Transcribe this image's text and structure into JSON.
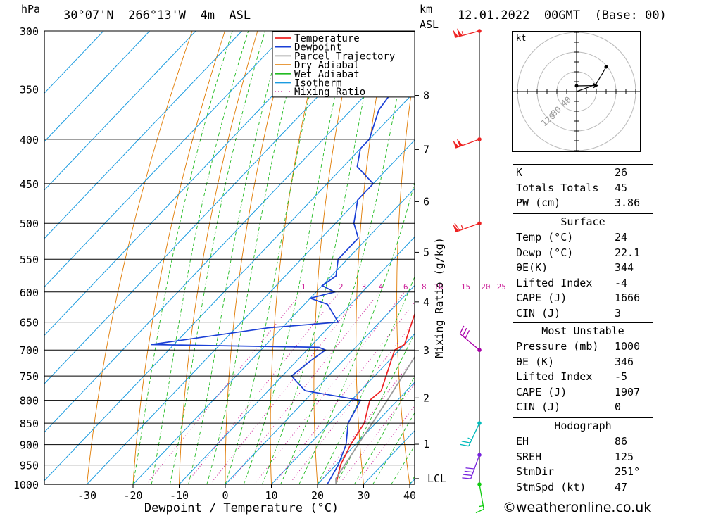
{
  "header": {
    "location": "30°07'N  266°13'W  4m  ASL",
    "datetime": "12.01.2022  00GMT  (Base: 00)",
    "p_unit": "hPa",
    "km_unit": "km",
    "km_unit2": "ASL"
  },
  "chart_data": {
    "type": "line",
    "subtype": "skew-t log-p",
    "xlabel": "Dewpoint / Temperature (°C)",
    "ylabel_left": "hPa",
    "ylabel_right": "Mixing Ratio (g/kg)",
    "x_ticks": [
      -30,
      -20,
      -10,
      0,
      10,
      20,
      30,
      40
    ],
    "y_ticks": [
      300,
      350,
      400,
      450,
      500,
      550,
      600,
      650,
      700,
      750,
      800,
      850,
      900,
      950,
      1000
    ],
    "xlim": [
      -40,
      40
    ],
    "ylim": [
      1000,
      300
    ],
    "km_ticks": [
      {
        "km": 1,
        "p": 899
      },
      {
        "km": 2,
        "p": 795
      },
      {
        "km": 3,
        "p": 701
      },
      {
        "km": 4,
        "p": 616
      },
      {
        "km": 5,
        "p": 540
      },
      {
        "km": 6,
        "p": 472
      },
      {
        "km": 7,
        "p": 411
      },
      {
        "km": 8,
        "p": 356
      }
    ],
    "lcl_label": "LCL",
    "lcl_p": 985,
    "mixing_ratio_labels": [
      "1",
      "2",
      "3",
      "4",
      "6",
      "8",
      "10",
      "15",
      "20",
      "25"
    ],
    "legend": [
      {
        "label": "Temperature",
        "color": "#ee2222",
        "style": "solid"
      },
      {
        "label": "Dewpoint",
        "color": "#1a3fd6",
        "style": "solid"
      },
      {
        "label": "Parcel Trajectory",
        "color": "#999999",
        "style": "solid"
      },
      {
        "label": "Dry Adiabat",
        "color": "#e07a00",
        "style": "solid"
      },
      {
        "label": "Wet Adiabat",
        "color": "#22bb22",
        "style": "solid"
      },
      {
        "label": "Isotherm",
        "color": "#1a9be0",
        "style": "solid"
      },
      {
        "label": "Mixing Ratio",
        "color": "#cc2299",
        "style": "dotted"
      }
    ],
    "series": [
      {
        "name": "Temperature",
        "points": [
          [
            1000,
            24
          ],
          [
            950,
            21
          ],
          [
            900,
            19
          ],
          [
            850,
            17.5
          ],
          [
            800,
            14
          ],
          [
            780,
            14.5
          ],
          [
            700,
            9
          ],
          [
            690,
            10
          ],
          [
            650,
            7
          ],
          [
            600,
            3
          ],
          [
            580,
            2
          ],
          [
            550,
            -1
          ],
          [
            500,
            -5
          ],
          [
            450,
            -11
          ],
          [
            400,
            -17
          ],
          [
            370,
            -21
          ],
          [
            350,
            -25
          ],
          [
            300,
            -34
          ]
        ]
      },
      {
        "name": "Dewpoint",
        "points": [
          [
            1000,
            22.1
          ],
          [
            950,
            20.5
          ],
          [
            900,
            18
          ],
          [
            850,
            14
          ],
          [
            800,
            12
          ],
          [
            780,
            -2
          ],
          [
            750,
            -8
          ],
          [
            720,
            -7
          ],
          [
            700,
            -6
          ],
          [
            695,
            -8
          ],
          [
            690,
            -45
          ],
          [
            660,
            -23
          ],
          [
            650,
            -9
          ],
          [
            620,
            -15
          ],
          [
            610,
            -20
          ],
          [
            600,
            -16
          ],
          [
            590,
            -20
          ],
          [
            575,
            -19
          ],
          [
            550,
            -22
          ],
          [
            520,
            -22
          ],
          [
            500,
            -26
          ],
          [
            470,
            -30
          ],
          [
            450,
            -30
          ],
          [
            430,
            -37
          ],
          [
            410,
            -40
          ],
          [
            400,
            -40
          ],
          [
            370,
            -44
          ],
          [
            350,
            -45
          ],
          [
            330,
            -44
          ],
          [
            300,
            -54
          ]
        ]
      },
      {
        "name": "Parcel Trajectory",
        "points": [
          [
            1000,
            24
          ],
          [
            985,
            22.8
          ],
          [
            900,
            20.6
          ],
          [
            800,
            17.8
          ],
          [
            700,
            14.3
          ],
          [
            600,
            9.6
          ],
          [
            550,
            6.6
          ],
          [
            500,
            3.1
          ],
          [
            450,
            -0.9
          ],
          [
            400,
            -5.8
          ],
          [
            370,
            -9.2
          ],
          [
            340,
            -13.5
          ],
          [
            320,
            -16.5
          ],
          [
            300,
            -20
          ]
        ]
      }
    ],
    "wind_barbs": [
      {
        "p": 300,
        "color": "#ee2222",
        "dir": 255,
        "speed_kt": 105
      },
      {
        "p": 400,
        "color": "#ee2222",
        "dir": 250,
        "speed_kt": 100
      },
      {
        "p": 500,
        "color": "#ee2222",
        "dir": 250,
        "speed_kt": 65
      },
      {
        "p": 700,
        "color": "#aa00aa",
        "dir": 310,
        "speed_kt": 30
      },
      {
        "p": 850,
        "color": "#00bbbb",
        "dir": 205,
        "speed_kt": 25
      },
      {
        "p": 925,
        "color": "#7722dd",
        "dir": 200,
        "speed_kt": 40
      },
      {
        "p": 1000,
        "color": "#11cc11",
        "dir": 170,
        "speed_kt": 15
      }
    ]
  },
  "hodograph": {
    "unit": "kt",
    "ring_labels": [
      "40",
      "80",
      "120"
    ],
    "trace": [
      [
        0,
        0
      ],
      [
        14,
        5
      ],
      [
        20,
        8
      ],
      [
        26,
        18
      ],
      [
        30,
        25
      ]
    ],
    "storm_motion": [
      18,
      6
    ]
  },
  "indices": {
    "general": [
      {
        "label": "K",
        "value": "26"
      },
      {
        "label": "Totals Totals",
        "value": "45"
      },
      {
        "label": "PW (cm)",
        "value": "3.86"
      }
    ],
    "surface": {
      "title": "Surface",
      "rows": [
        {
          "label": "Temp (°C)",
          "value": "24"
        },
        {
          "label": "Dewp (°C)",
          "value": "22.1"
        },
        {
          "label": "θE(K)",
          "value": "344"
        },
        {
          "label": "Lifted Index",
          "value": "-4"
        },
        {
          "label": "CAPE (J)",
          "value": "1666"
        },
        {
          "label": "CIN (J)",
          "value": "3"
        }
      ]
    },
    "most_unstable": {
      "title": "Most Unstable",
      "rows": [
        {
          "label": "Pressure (mb)",
          "value": "1000"
        },
        {
          "label": "θE (K)",
          "value": "346"
        },
        {
          "label": "Lifted Index",
          "value": "-5"
        },
        {
          "label": "CAPE (J)",
          "value": "1907"
        },
        {
          "label": "CIN (J)",
          "value": "0"
        }
      ]
    },
    "hodograph": {
      "title": "Hodograph",
      "rows": [
        {
          "label": "EH",
          "value": "86"
        },
        {
          "label": "SREH",
          "value": "125"
        },
        {
          "label": "StmDir",
          "value": "251°"
        },
        {
          "label": "StmSpd (kt)",
          "value": "47"
        }
      ]
    }
  },
  "footer": {
    "copyright_symbol": "©",
    "site": "weatheronline.co.uk"
  }
}
